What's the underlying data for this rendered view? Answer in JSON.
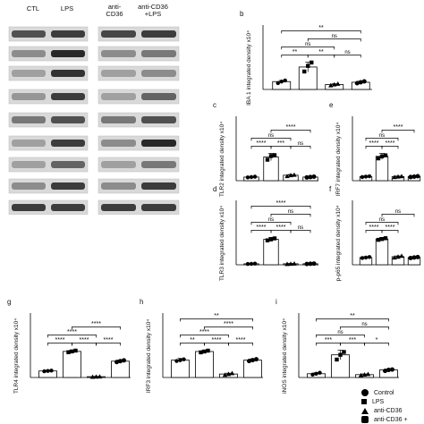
{
  "blot": {
    "lane_labels": [
      "CTL",
      "LPS",
      "anti-\nCD36",
      "anti-CD36\n+LPS"
    ]
  },
  "legend": {
    "items": [
      {
        "label": "Control",
        "shape": "circle"
      },
      {
        "label": "LPS",
        "shape": "square"
      },
      {
        "label": "anti-CD36",
        "shape": "triangle"
      },
      {
        "label": "anti-CD36 +",
        "shape": "hexagon"
      }
    ]
  },
  "chart_data": [
    {
      "type": "bar",
      "panel": "b",
      "ylabel": "IBA 1 integrated density x10⁴",
      "categories": [
        "Control",
        "LPS",
        "anti-CD36",
        "anti-CD36+LPS"
      ],
      "values": [
        0.35,
        1.0,
        0.22,
        0.32
      ],
      "ylim": [
        0,
        1.6
      ],
      "errors": [
        0.05,
        0.22,
        0.04,
        0.05
      ],
      "points": [
        [
          0.28,
          0.35,
          0.4
        ],
        [
          0.8,
          1.05,
          1.2
        ],
        [
          0.18,
          0.22,
          0.25
        ],
        [
          0.28,
          0.32,
          0.36
        ]
      ],
      "significance": [
        {
          "from": 0,
          "to": 1,
          "label": "**",
          "level": 1
        },
        {
          "from": 1,
          "to": 2,
          "label": "**",
          "level": 1
        },
        {
          "from": 2,
          "to": 3,
          "label": "ns",
          "level": 1
        },
        {
          "from": 0,
          "to": 2,
          "label": "ns",
          "level": 2
        },
        {
          "from": 1,
          "to": 3,
          "label": "ns",
          "level": 3
        },
        {
          "from": 0,
          "to": 3,
          "label": "**",
          "level": 4
        }
      ]
    },
    {
      "type": "bar",
      "panel": "c",
      "ylabel": "TLR2 integrated density x10⁴",
      "categories": [
        "Control",
        "LPS",
        "anti-CD36",
        "anti-CD36+LPS"
      ],
      "values": [
        0.2,
        1.3,
        0.3,
        0.2
      ],
      "ylim": [
        0,
        2.5
      ],
      "errors": [
        0.03,
        0.2,
        0.04,
        0.03
      ],
      "points": [
        [
          0.18,
          0.2,
          0.22
        ],
        [
          1.15,
          1.35,
          1.4
        ],
        [
          0.25,
          0.3,
          0.32
        ],
        [
          0.18,
          0.2,
          0.22
        ]
      ],
      "significance": [
        {
          "from": 0,
          "to": 1,
          "label": "****",
          "level": 1
        },
        {
          "from": 1,
          "to": 2,
          "label": "***",
          "level": 1
        },
        {
          "from": 0,
          "to": 2,
          "label": "ns",
          "level": 2
        },
        {
          "from": 2,
          "to": 3,
          "label": "ns",
          "level": 1
        },
        {
          "from": 1,
          "to": 3,
          "label": "****",
          "level": 3
        }
      ]
    },
    {
      "type": "bar",
      "panel": "e",
      "ylabel": "IRF7 integrated density x10⁴",
      "categories": [
        "Control",
        "LPS",
        "anti-CD36",
        "anti-CD36+LPS"
      ],
      "values": [
        0.2,
        1.2,
        0.2,
        0.2
      ],
      "ylim": [
        0,
        2.5
      ],
      "errors": [
        0.03,
        0.15,
        0.03,
        0.03
      ],
      "points": [
        [
          0.18,
          0.2,
          0.22
        ],
        [
          1.1,
          1.2,
          1.25
        ],
        [
          0.18,
          0.2,
          0.22
        ],
        [
          0.18,
          0.2,
          0.22
        ]
      ],
      "significance": [
        {
          "from": 0,
          "to": 1,
          "label": "****",
          "level": 1
        },
        {
          "from": 1,
          "to": 2,
          "label": "****",
          "level": 1
        },
        {
          "from": 0,
          "to": 2,
          "label": "ns",
          "level": 2
        },
        {
          "from": 1,
          "to": 3,
          "label": "****",
          "level": 3
        }
      ]
    },
    {
      "type": "bar",
      "panel": "d",
      "ylabel": "TLR3 integrated density x10⁴",
      "categories": [
        "Control",
        "LPS",
        "anti-CD36",
        "anti-CD36+LPS"
      ],
      "values": [
        0.05,
        1.3,
        0.05,
        0.05
      ],
      "ylim": [
        0,
        2.5
      ],
      "errors": [
        0.02,
        0.1,
        0.02,
        0.02
      ],
      "points": [
        [
          0.04,
          0.05,
          0.06
        ],
        [
          1.25,
          1.3,
          1.35
        ],
        [
          0.04,
          0.05,
          0.06
        ],
        [
          0.04,
          0.05,
          0.06
        ]
      ],
      "significance": [
        {
          "from": 0,
          "to": 1,
          "label": "****",
          "level": 1
        },
        {
          "from": 1,
          "to": 2,
          "label": "****",
          "level": 1
        },
        {
          "from": 2,
          "to": 3,
          "label": "ns",
          "level": 1
        },
        {
          "from": 0,
          "to": 2,
          "label": "ns",
          "level": 2
        },
        {
          "from": 1,
          "to": 3,
          "label": "ns",
          "level": 3
        },
        {
          "from": 0,
          "to": 3,
          "label": "****",
          "level": 4
        }
      ]
    },
    {
      "type": "bar",
      "panel": "f",
      "ylabel": "p-p65 integrated density x10⁴",
      "categories": [
        "Control",
        "LPS",
        "anti-CD36",
        "anti-CD36+LPS"
      ],
      "values": [
        0.45,
        1.6,
        0.5,
        0.45
      ],
      "ylim": [
        0,
        2.5
      ],
      "errors": [
        0.05,
        0.1,
        0.05,
        0.05
      ],
      "points": [
        [
          0.42,
          0.45,
          0.48
        ],
        [
          1.55,
          1.6,
          1.65
        ],
        [
          0.45,
          0.5,
          0.55
        ],
        [
          0.42,
          0.45,
          0.48
        ]
      ],
      "significance": [
        {
          "from": 0,
          "to": 1,
          "label": "****",
          "level": 1
        },
        {
          "from": 1,
          "to": 2,
          "label": "****",
          "level": 1
        },
        {
          "from": 0,
          "to": 2,
          "label": "ns",
          "level": 2
        },
        {
          "from": 1,
          "to": 3,
          "label": "ns",
          "level": 3
        }
      ]
    },
    {
      "type": "bar",
      "panel": "g",
      "ylabel": "TLR4 integrated density x10⁴",
      "categories": [
        "Control",
        "LPS",
        "anti-CD36",
        "anti-CD36+LPS"
      ],
      "values": [
        0.4,
        1.6,
        0.05,
        1.0
      ],
      "ylim": [
        0,
        3.0
      ],
      "errors": [
        0.04,
        0.08,
        0.02,
        0.08
      ],
      "points": [
        [
          0.38,
          0.4,
          0.42
        ],
        [
          1.55,
          1.6,
          1.65
        ],
        [
          0.04,
          0.05,
          0.06
        ],
        [
          0.95,
          1.0,
          1.05
        ]
      ],
      "significance": [
        {
          "from": 0,
          "to": 1,
          "label": "****",
          "level": 1
        },
        {
          "from": 1,
          "to": 2,
          "label": "****",
          "level": 1
        },
        {
          "from": 2,
          "to": 3,
          "label": "****",
          "level": 1
        },
        {
          "from": 0,
          "to": 2,
          "label": "****",
          "level": 2
        },
        {
          "from": 1,
          "to": 3,
          "label": "****",
          "level": 3
        }
      ]
    },
    {
      "type": "bar",
      "panel": "h",
      "ylabel": "IRF3 integrated density x10⁴",
      "categories": [
        "Control",
        "LPS",
        "anti-CD36",
        "anti-CD36+LPS"
      ],
      "values": [
        1.0,
        1.5,
        0.2,
        1.0
      ],
      "ylim": [
        0,
        3.0
      ],
      "errors": [
        0.1,
        0.08,
        0.05,
        0.08
      ],
      "points": [
        [
          0.95,
          1.0,
          1.05
        ],
        [
          1.45,
          1.5,
          1.55
        ],
        [
          0.15,
          0.2,
          0.25
        ],
        [
          0.95,
          1.0,
          1.05
        ]
      ],
      "significance": [
        {
          "from": 0,
          "to": 1,
          "label": "**",
          "level": 1
        },
        {
          "from": 1,
          "to": 2,
          "label": "****",
          "level": 1
        },
        {
          "from": 2,
          "to": 3,
          "label": "****",
          "level": 1
        },
        {
          "from": 0,
          "to": 2,
          "label": "****",
          "level": 2
        },
        {
          "from": 1,
          "to": 3,
          "label": "****",
          "level": 3
        },
        {
          "from": 0,
          "to": 3,
          "label": "**",
          "level": 4
        }
      ]
    },
    {
      "type": "bar",
      "panel": "i",
      "ylabel": "iNOS integrated density x10⁴",
      "categories": [
        "Control",
        "LPS",
        "anti-CD36",
        "anti-CD36+LPS"
      ],
      "values": [
        0.2,
        1.2,
        0.15,
        0.4
      ],
      "ylim": [
        0,
        3.0
      ],
      "errors": [
        0.05,
        0.25,
        0.04,
        0.05
      ],
      "points": [
        [
          0.15,
          0.2,
          0.25
        ],
        [
          0.95,
          1.2,
          1.35
        ],
        [
          0.12,
          0.15,
          0.18
        ],
        [
          0.35,
          0.4,
          0.42
        ]
      ],
      "significance": [
        {
          "from": 0,
          "to": 1,
          "label": "***",
          "level": 1
        },
        {
          "from": 1,
          "to": 2,
          "label": "***",
          "level": 1
        },
        {
          "from": 2,
          "to": 3,
          "label": "*",
          "level": 1
        },
        {
          "from": 0,
          "to": 2,
          "label": "ns",
          "level": 2
        },
        {
          "from": 1,
          "to": 3,
          "label": "ns",
          "level": 3
        },
        {
          "from": 0,
          "to": 3,
          "label": "**",
          "level": 4
        }
      ]
    }
  ]
}
